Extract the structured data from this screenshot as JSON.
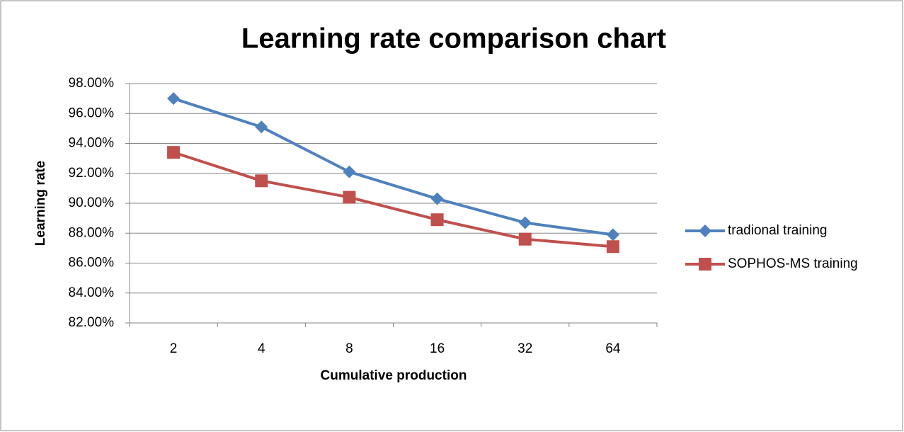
{
  "chart_data": {
    "type": "line",
    "title": "Learning rate comparison chart",
    "x_label": "Cumulative production",
    "y_label": "Learning rate",
    "categories": [
      "2",
      "4",
      "8",
      "16",
      "32",
      "64"
    ],
    "series": [
      {
        "name": "tradional training",
        "color": "#4f81bd",
        "marker": "diamond",
        "values": [
          97.0,
          95.1,
          92.1,
          90.3,
          88.7,
          87.9
        ]
      },
      {
        "name": "SOPHOS-MS training",
        "color": "#c0504d",
        "marker": "square",
        "values": [
          93.4,
          91.5,
          90.4,
          88.9,
          87.6,
          87.1
        ]
      }
    ],
    "ylim": [
      82,
      98
    ],
    "yticks": [
      {
        "value": 82,
        "label": "82.00%"
      },
      {
        "value": 84,
        "label": "84.00%"
      },
      {
        "value": 86,
        "label": "86.00%"
      },
      {
        "value": 88,
        "label": "88.00%"
      },
      {
        "value": 90,
        "label": "90.00%"
      },
      {
        "value": 92,
        "label": "92.00%"
      },
      {
        "value": 94,
        "label": "94.00%"
      },
      {
        "value": 96,
        "label": "96.00%"
      },
      {
        "value": 98,
        "label": "98.00%"
      }
    ],
    "grid": true,
    "legend": "right"
  }
}
